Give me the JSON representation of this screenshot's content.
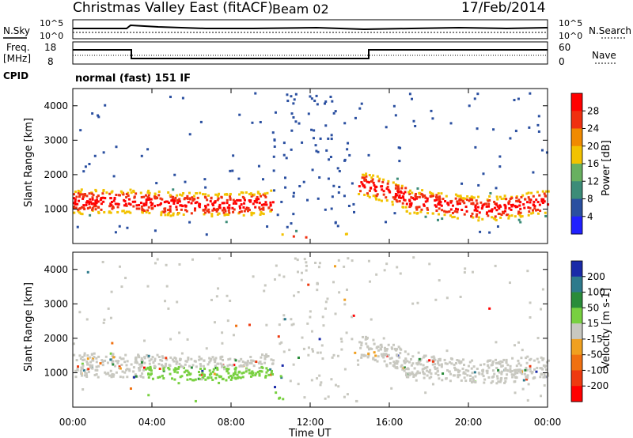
{
  "header": {
    "title": "Christmas Valley East (fitACF)",
    "beam": "Beam 02",
    "date": "17/Feb/2014"
  },
  "status_panels": {
    "nsky_label": "N.Sky",
    "nsearch_label": "N.Search",
    "freq_label_1": "Freq.",
    "freq_label_2": "[MHz]",
    "nave_label": "Nave",
    "cpid_label": "CPID",
    "cpid_value": "normal (fast) 151 IF",
    "noise_ticks": [
      "10^5",
      "10^0"
    ],
    "freq_ticks": [
      "18",
      "8"
    ],
    "nave_ticks": [
      "60",
      "0"
    ]
  },
  "chart_data": [
    {
      "type": "heatmap",
      "panel": "power",
      "ylabel": "Slant Range [km]",
      "y_ticks": [
        "1000",
        "2000",
        "3000",
        "4000"
      ],
      "colorbar_label": "Power [dB]",
      "colorbar_ticks": [
        "4",
        "8",
        "12",
        "16",
        "20",
        "24",
        "28"
      ],
      "colorbar_colors": [
        "#2020ff",
        "#2a4fa0",
        "#3c8c78",
        "#68b060",
        "#f2c200",
        "#f08a00",
        "#f03010",
        "#ff0000"
      ]
    },
    {
      "type": "heatmap",
      "panel": "velocity",
      "ylabel": "Slant Range [km]",
      "y_ticks": [
        "1000",
        "2000",
        "3000",
        "4000"
      ],
      "colorbar_label": "Velocity [m s-1]",
      "colorbar_ticks": [
        "200",
        "100",
        "50",
        "15",
        "-15",
        "-50",
        "-100",
        "-200"
      ],
      "colorbar_colors": [
        "#1a2aa8",
        "#2e7a8c",
        "#2a8c3a",
        "#78d040",
        "#c8c8c0",
        "#f0a020",
        "#f07010",
        "#ee3a10",
        "#ff0000"
      ]
    }
  ],
  "x_axis": {
    "label": "Time UT",
    "ticks": [
      "00:00",
      "04:00",
      "08:00",
      "12:00",
      "16:00",
      "20:00",
      "00:00"
    ]
  }
}
